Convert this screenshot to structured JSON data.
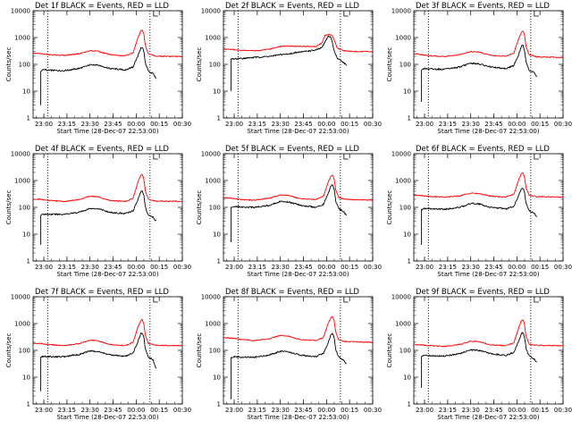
{
  "figure": {
    "ylabel": "Counts/sec",
    "xlabel": "Start Time (28-Dec-07 22:53:00)",
    "x_tick_labels": [
      "23:00",
      "23:15",
      "23:30",
      "23:45",
      "00:00",
      "00:15",
      "00:30"
    ],
    "y_tick_labels": [
      "1",
      "10",
      "100",
      "1000",
      "10000"
    ],
    "colors": {
      "events": "#000000",
      "lld": "#ff0000",
      "axes": "#000000",
      "background": "#ffffff"
    }
  },
  "chart_data": [
    {
      "type": "line",
      "title": "Det 1f BLACK = Events, RED = LLD",
      "xlabel": "Start Time (28-Dec-07 22:53:00)",
      "ylabel": "Counts/sec",
      "x_unit": "minutes after 22:53:00",
      "xlim": [
        0,
        97
      ],
      "ylim": [
        1,
        10000
      ],
      "y_scale": "log",
      "vlines": [
        9.5,
        76
      ],
      "series": [
        {
          "name": "Events",
          "color": "#000000",
          "x": [
            5,
            5,
            7,
            10,
            20,
            30,
            37,
            42,
            50,
            60,
            65,
            68,
            70,
            71,
            72,
            73,
            75,
            78,
            80
          ],
          "y": [
            3,
            55,
            65,
            60,
            58,
            70,
            95,
            95,
            70,
            62,
            80,
            200,
            400,
            420,
            300,
            110,
            55,
            45,
            30
          ]
        },
        {
          "name": "LLD",
          "color": "#ff0000",
          "x": [
            0,
            5,
            10,
            20,
            30,
            37,
            42,
            50,
            60,
            65,
            68,
            70,
            71,
            72,
            73,
            75,
            80,
            90,
            97
          ],
          "y": [
            260,
            250,
            230,
            215,
            250,
            320,
            310,
            230,
            210,
            270,
            900,
            1800,
            1900,
            1300,
            500,
            250,
            200,
            200,
            195
          ]
        }
      ]
    },
    {
      "type": "line",
      "title": "Det 2f BLACK = Events, RED = LLD",
      "xlabel": "Start Time (28-Dec-07 22:53:00)",
      "ylabel": "Counts/sec",
      "x_unit": "minutes after 22:53:00",
      "xlim": [
        0,
        97
      ],
      "ylim": [
        1,
        10000
      ],
      "y_scale": "log",
      "vlines": [
        9.5,
        76
      ],
      "series": [
        {
          "name": "Events",
          "color": "#000000",
          "x": [
            5,
            5,
            7,
            10,
            20,
            30,
            37,
            42,
            50,
            60,
            64,
            66,
            68,
            70,
            71,
            72,
            74,
            76,
            78,
            80
          ],
          "y": [
            10,
            155,
            160,
            165,
            180,
            200,
            230,
            245,
            290,
            340,
            420,
            700,
            1100,
            1000,
            600,
            300,
            170,
            140,
            120,
            90
          ]
        },
        {
          "name": "LLD",
          "color": "#ff0000",
          "x": [
            0,
            5,
            10,
            20,
            30,
            37,
            42,
            50,
            60,
            64,
            66,
            68,
            70,
            71,
            72,
            74,
            78,
            85,
            97
          ],
          "y": [
            360,
            360,
            340,
            320,
            370,
            470,
            480,
            470,
            460,
            620,
            1200,
            1300,
            1250,
            1100,
            800,
            400,
            320,
            300,
            295
          ]
        }
      ]
    },
    {
      "type": "line",
      "title": "Det 3f BLACK = Events, RED = LLD",
      "xlabel": "Start Time (28-Dec-07 22:53:00)",
      "ylabel": "Counts/sec",
      "x_unit": "minutes after 22:53:00",
      "xlim": [
        0,
        97
      ],
      "ylim": [
        1,
        10000
      ],
      "y_scale": "log",
      "vlines": [
        9.5,
        76
      ],
      "series": [
        {
          "name": "Events",
          "color": "#000000",
          "x": [
            5,
            5,
            7,
            10,
            20,
            30,
            37,
            42,
            50,
            60,
            65,
            68,
            70,
            71,
            72,
            73,
            75,
            78,
            80
          ],
          "y": [
            4,
            60,
            70,
            68,
            65,
            80,
            110,
            105,
            80,
            70,
            90,
            220,
            480,
            500,
            320,
            120,
            60,
            50,
            35
          ]
        },
        {
          "name": "LLD",
          "color": "#ff0000",
          "x": [
            0,
            5,
            10,
            20,
            30,
            37,
            42,
            50,
            60,
            65,
            68,
            70,
            71,
            72,
            73,
            75,
            80,
            90,
            97
          ],
          "y": [
            250,
            230,
            210,
            195,
            230,
            300,
            290,
            215,
            200,
            260,
            850,
            1600,
            1700,
            1200,
            450,
            230,
            190,
            185,
            180
          ]
        }
      ]
    },
    {
      "type": "line",
      "title": "Det 4f BLACK = Events, RED = LLD",
      "xlabel": "Start Time (28-Dec-07 22:53:00)",
      "ylabel": "Counts/sec",
      "x_unit": "minutes after 22:53:00",
      "xlim": [
        0,
        97
      ],
      "ylim": [
        1,
        10000
      ],
      "y_scale": "log",
      "vlines": [
        9.5,
        76
      ],
      "series": [
        {
          "name": "Events",
          "color": "#000000",
          "x": [
            5,
            5,
            7,
            10,
            20,
            30,
            37,
            42,
            50,
            60,
            65,
            68,
            70,
            71,
            72,
            73,
            75,
            78,
            80
          ],
          "y": [
            4,
            50,
            55,
            55,
            55,
            65,
            90,
            90,
            65,
            58,
            75,
            190,
            380,
            400,
            280,
            100,
            50,
            42,
            30
          ]
        },
        {
          "name": "LLD",
          "color": "#ff0000",
          "x": [
            0,
            5,
            10,
            20,
            30,
            37,
            42,
            50,
            60,
            65,
            68,
            70,
            71,
            72,
            73,
            75,
            80,
            90,
            97
          ],
          "y": [
            200,
            200,
            180,
            165,
            195,
            260,
            250,
            180,
            165,
            220,
            800,
            1600,
            1700,
            1100,
            400,
            200,
            170,
            170,
            165
          ]
        }
      ]
    },
    {
      "type": "line",
      "title": "Det 5f BLACK = Events, RED = LLD",
      "xlabel": "Start Time (28-Dec-07 22:53:00)",
      "ylabel": "Counts/sec",
      "x_unit": "minutes after 22:53:00",
      "xlim": [
        0,
        97
      ],
      "ylim": [
        1,
        10000
      ],
      "y_scale": "log",
      "vlines": [
        9.5,
        76
      ],
      "series": [
        {
          "name": "Events",
          "color": "#000000",
          "x": [
            5,
            5,
            7,
            10,
            20,
            30,
            37,
            42,
            50,
            60,
            65,
            68,
            70,
            71,
            72,
            73,
            75,
            78,
            80
          ],
          "y": [
            5,
            100,
            110,
            105,
            100,
            120,
            170,
            160,
            120,
            100,
            130,
            320,
            650,
            680,
            450,
            170,
            90,
            70,
            50
          ]
        },
        {
          "name": "LLD",
          "color": "#ff0000",
          "x": [
            0,
            5,
            10,
            20,
            30,
            37,
            42,
            50,
            60,
            65,
            68,
            70,
            71,
            72,
            73,
            75,
            80,
            90,
            97
          ],
          "y": [
            230,
            220,
            200,
            185,
            220,
            290,
            280,
            210,
            195,
            260,
            850,
            1500,
            1600,
            1100,
            450,
            230,
            195,
            190,
            185
          ]
        }
      ]
    },
    {
      "type": "line",
      "title": "Det 6f BLACK = Events, RED = LLD",
      "xlabel": "Start Time (28-Dec-07 22:53:00)",
      "ylabel": "Counts/sec",
      "x_unit": "minutes after 22:53:00",
      "xlim": [
        0,
        97
      ],
      "ylim": [
        1,
        10000
      ],
      "y_scale": "log",
      "vlines": [
        9.5,
        76
      ],
      "series": [
        {
          "name": "Events",
          "color": "#000000",
          "x": [
            5,
            5,
            7,
            10,
            20,
            30,
            37,
            42,
            50,
            60,
            65,
            68,
            70,
            71,
            72,
            73,
            75,
            78,
            80
          ],
          "y": [
            4,
            85,
            90,
            88,
            85,
            100,
            140,
            135,
            100,
            88,
            110,
            260,
            500,
            520,
            350,
            140,
            75,
            60,
            45
          ]
        },
        {
          "name": "LLD",
          "color": "#ff0000",
          "x": [
            0,
            5,
            10,
            20,
            30,
            37,
            42,
            50,
            60,
            65,
            68,
            70,
            71,
            72,
            73,
            75,
            80,
            90,
            97
          ],
          "y": [
            280,
            275,
            255,
            240,
            270,
            340,
            330,
            260,
            245,
            310,
            1000,
            1900,
            2000,
            1300,
            520,
            280,
            250,
            245,
            240
          ]
        }
      ]
    },
    {
      "type": "line",
      "title": "Det 7f BLACK = Events, RED = LLD",
      "xlabel": "Start Time (28-Dec-07 22:53:00)",
      "ylabel": "Counts/sec",
      "x_unit": "minutes after 22:53:00",
      "xlim": [
        0,
        97
      ],
      "ylim": [
        1,
        10000
      ],
      "y_scale": "log",
      "vlines": [
        9.5,
        76
      ],
      "series": [
        {
          "name": "Events",
          "color": "#000000",
          "x": [
            5,
            5,
            7,
            10,
            20,
            30,
            37,
            42,
            50,
            60,
            65,
            68,
            70,
            71,
            72,
            73,
            75,
            78,
            80
          ],
          "y": [
            3,
            55,
            60,
            58,
            58,
            70,
            95,
            90,
            68,
            60,
            80,
            200,
            420,
            440,
            300,
            110,
            55,
            45,
            20
          ]
        },
        {
          "name": "LLD",
          "color": "#ff0000",
          "x": [
            0,
            5,
            10,
            20,
            30,
            37,
            42,
            50,
            60,
            65,
            68,
            70,
            71,
            72,
            73,
            75,
            80,
            90,
            97
          ],
          "y": [
            180,
            180,
            165,
            150,
            180,
            240,
            230,
            165,
            150,
            200,
            700,
            1300,
            1400,
            950,
            350,
            180,
            155,
            150,
            150
          ]
        }
      ]
    },
    {
      "type": "line",
      "title": "Det 8f BLACK = Events, RED = LLD",
      "xlabel": "Start Time (28-Dec-07 22:53:00)",
      "ylabel": "Counts/sec",
      "x_unit": "minutes after 22:53:00",
      "xlim": [
        0,
        97
      ],
      "ylim": [
        1,
        10000
      ],
      "y_scale": "log",
      "vlines": [
        9.5,
        76
      ],
      "series": [
        {
          "name": "Events",
          "color": "#000000",
          "x": [
            5,
            5,
            7,
            10,
            20,
            30,
            37,
            42,
            50,
            60,
            65,
            68,
            70,
            71,
            72,
            73,
            75,
            78,
            80
          ],
          "y": [
            1.5,
            55,
            58,
            56,
            55,
            68,
            92,
            88,
            66,
            58,
            78,
            190,
            400,
            420,
            290,
            105,
            55,
            45,
            30
          ]
        },
        {
          "name": "LLD",
          "color": "#ff0000",
          "x": [
            0,
            5,
            10,
            20,
            30,
            37,
            42,
            50,
            60,
            65,
            68,
            70,
            71,
            72,
            73,
            75,
            80,
            90,
            97
          ],
          "y": [
            300,
            290,
            260,
            230,
            270,
            360,
            340,
            250,
            230,
            300,
            1000,
            1700,
            1800,
            1200,
            480,
            250,
            210,
            205,
            200
          ]
        }
      ]
    },
    {
      "type": "line",
      "title": "Det 9f BLACK = Events, RED = LLD",
      "xlabel": "Start Time (28-Dec-07 22:53:00)",
      "ylabel": "Counts/sec",
      "x_unit": "minutes after 22:53:00",
      "xlim": [
        0,
        97
      ],
      "ylim": [
        1,
        10000
      ],
      "y_scale": "log",
      "vlines": [
        9.5,
        76
      ],
      "series": [
        {
          "name": "Events",
          "color": "#000000",
          "x": [
            5,
            5,
            7,
            10,
            20,
            30,
            37,
            42,
            50,
            60,
            65,
            68,
            70,
            71,
            72,
            73,
            75,
            78,
            80
          ],
          "y": [
            4,
            60,
            65,
            63,
            62,
            75,
            105,
            100,
            75,
            65,
            85,
            210,
            440,
            460,
            310,
            115,
            60,
            48,
            35
          ]
        },
        {
          "name": "LLD",
          "color": "#ff0000",
          "x": [
            0,
            5,
            10,
            20,
            30,
            37,
            42,
            50,
            60,
            65,
            68,
            70,
            71,
            72,
            73,
            75,
            80,
            90,
            97
          ],
          "y": [
            165,
            160,
            150,
            140,
            165,
            220,
            215,
            160,
            150,
            190,
            650,
            1300,
            1400,
            900,
            330,
            170,
            155,
            150,
            150
          ]
        }
      ]
    }
  ]
}
